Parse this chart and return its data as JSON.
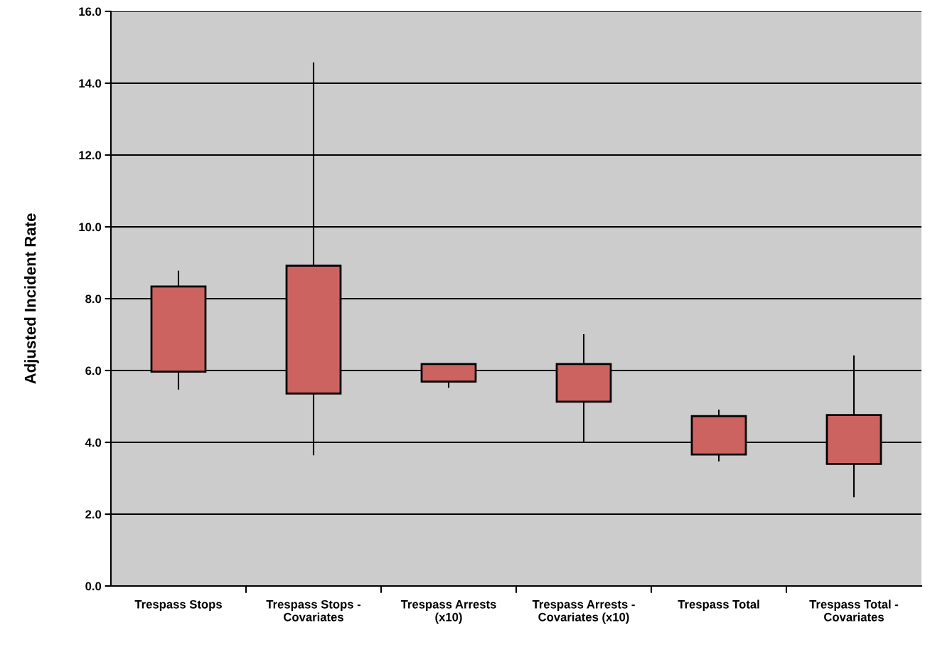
{
  "chart_data": {
    "type": "candlestick",
    "ylabel": "Adjusted Incident Rate",
    "categories": [
      "Trespass Stops",
      "Trespass Stops -\nCovariates",
      "Trespass Arrests\n(x10)",
      "Trespass Arrests -\nCovariates (x10)",
      "Trespass Total",
      "Trespass Total -\nCovariates"
    ],
    "ohlc": [
      [
        5.97,
        8.78,
        5.47,
        8.34
      ],
      [
        5.36,
        14.58,
        3.64,
        8.92
      ],
      [
        5.69,
        6.18,
        5.52,
        6.18
      ],
      [
        5.13,
        7.01,
        4.0,
        6.18
      ],
      [
        3.66,
        4.91,
        3.47,
        4.73
      ],
      [
        3.4,
        6.42,
        2.47,
        4.76
      ]
    ],
    "color": "#cd6360",
    "ylim": [
      0,
      16
    ],
    "yticks": [
      {
        "value": 0,
        "label": "0.0"
      },
      {
        "value": 2,
        "label": "2.0"
      },
      {
        "value": 4,
        "label": "4.0"
      },
      {
        "value": 6,
        "label": "6.0"
      },
      {
        "value": 8,
        "label": "8.0"
      },
      {
        "value": 10,
        "label": "10.0"
      },
      {
        "value": 12,
        "label": "12.0"
      },
      {
        "value": 14,
        "label": "14.0"
      },
      {
        "value": 16,
        "label": "16.0"
      }
    ],
    "grid": "y"
  }
}
